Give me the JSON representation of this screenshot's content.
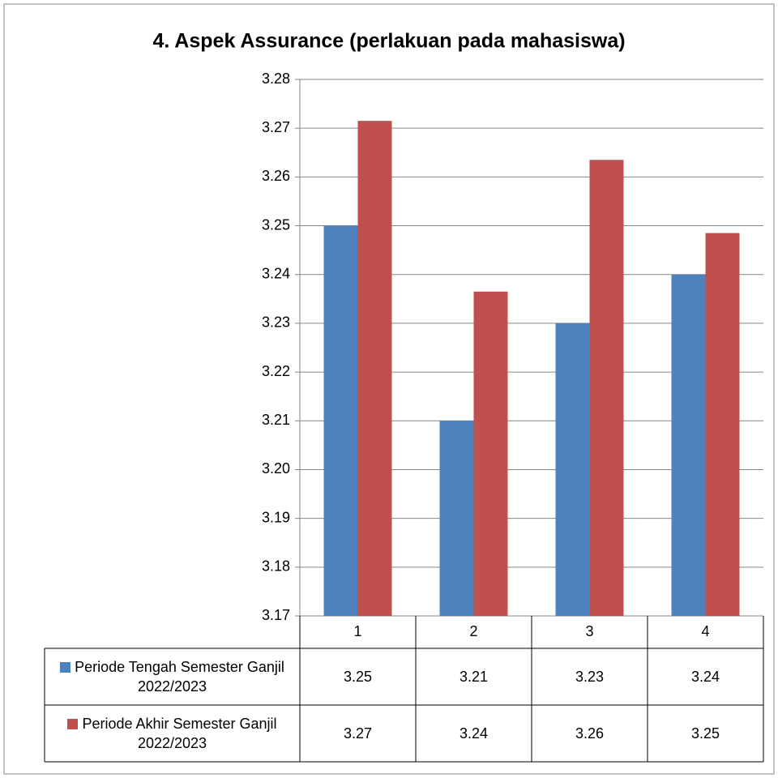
{
  "chart_data": {
    "type": "bar",
    "title": "4. Aspek Assurance (perlakuan pada mahasiswa)",
    "categories": [
      "1",
      "2",
      "3",
      "4"
    ],
    "series": [
      {
        "name": "Periode Tengah Semester Ganjil 2022/2023",
        "color": "#4f81bd",
        "values": [
          3.25,
          3.21,
          3.23,
          3.24
        ]
      },
      {
        "name": "Periode Akhir Semester Ganjil 2022/2023",
        "color": "#c0504d",
        "values": [
          3.2715,
          3.2365,
          3.2635,
          3.2485
        ],
        "value_labels": [
          "3.27",
          "3.24",
          "3.26",
          "3.25"
        ]
      }
    ],
    "ylim": [
      3.17,
      3.28
    ],
    "yticks": [
      3.17,
      3.18,
      3.19,
      {
        "value": 3.2,
        "label": "3.20"
      },
      3.21,
      3.22,
      3.23,
      3.24,
      3.25,
      3.26,
      3.27,
      3.28
    ],
    "grid": true,
    "legend": "data-table"
  }
}
